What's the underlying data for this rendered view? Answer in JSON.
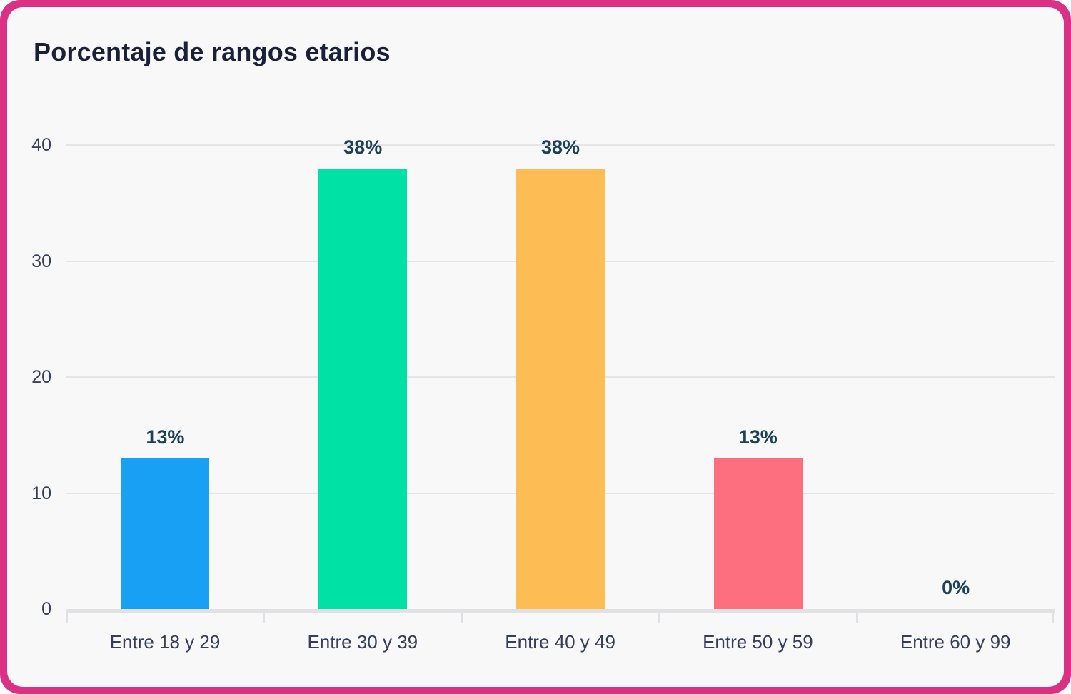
{
  "card": {
    "title": "Porcentaje de rangos etarios"
  },
  "chart_data": {
    "type": "bar",
    "title": "Porcentaje de rangos etarios",
    "categories": [
      "Entre 18 y 29",
      "Entre 30 y 39",
      "Entre 40 y 49",
      "Entre 50 y 59",
      "Entre 60 y 99"
    ],
    "values": [
      13,
      38,
      38,
      13,
      0
    ],
    "value_labels": [
      "13%",
      "38%",
      "38%",
      "13%",
      "0%"
    ],
    "bar_colors": [
      "#18A0F5",
      "#00E1A6",
      "#FEBC55",
      "#FD6E7F",
      "#7B5DD0"
    ],
    "y_ticks": [
      40,
      30,
      20,
      10,
      0
    ],
    "ylim": [
      0,
      40
    ],
    "xlabel": "",
    "ylabel": "",
    "grid": "horizontal",
    "legend": "none"
  },
  "colors": {
    "frame_pink": "#DB3184",
    "card_background": "#F8F8F9",
    "title_text": "#1A2038",
    "gridline": "#E5E5E7",
    "axis_line": "#E1E1E3",
    "y_tick_label": "#373D5C",
    "x_category_label": "#363C5E",
    "value_label": "#1D4156",
    "bar_blue": "#18A0F5",
    "bar_green": "#00E1A6",
    "bar_orange": "#FEBC55",
    "bar_red": "#FD6E7F"
  }
}
